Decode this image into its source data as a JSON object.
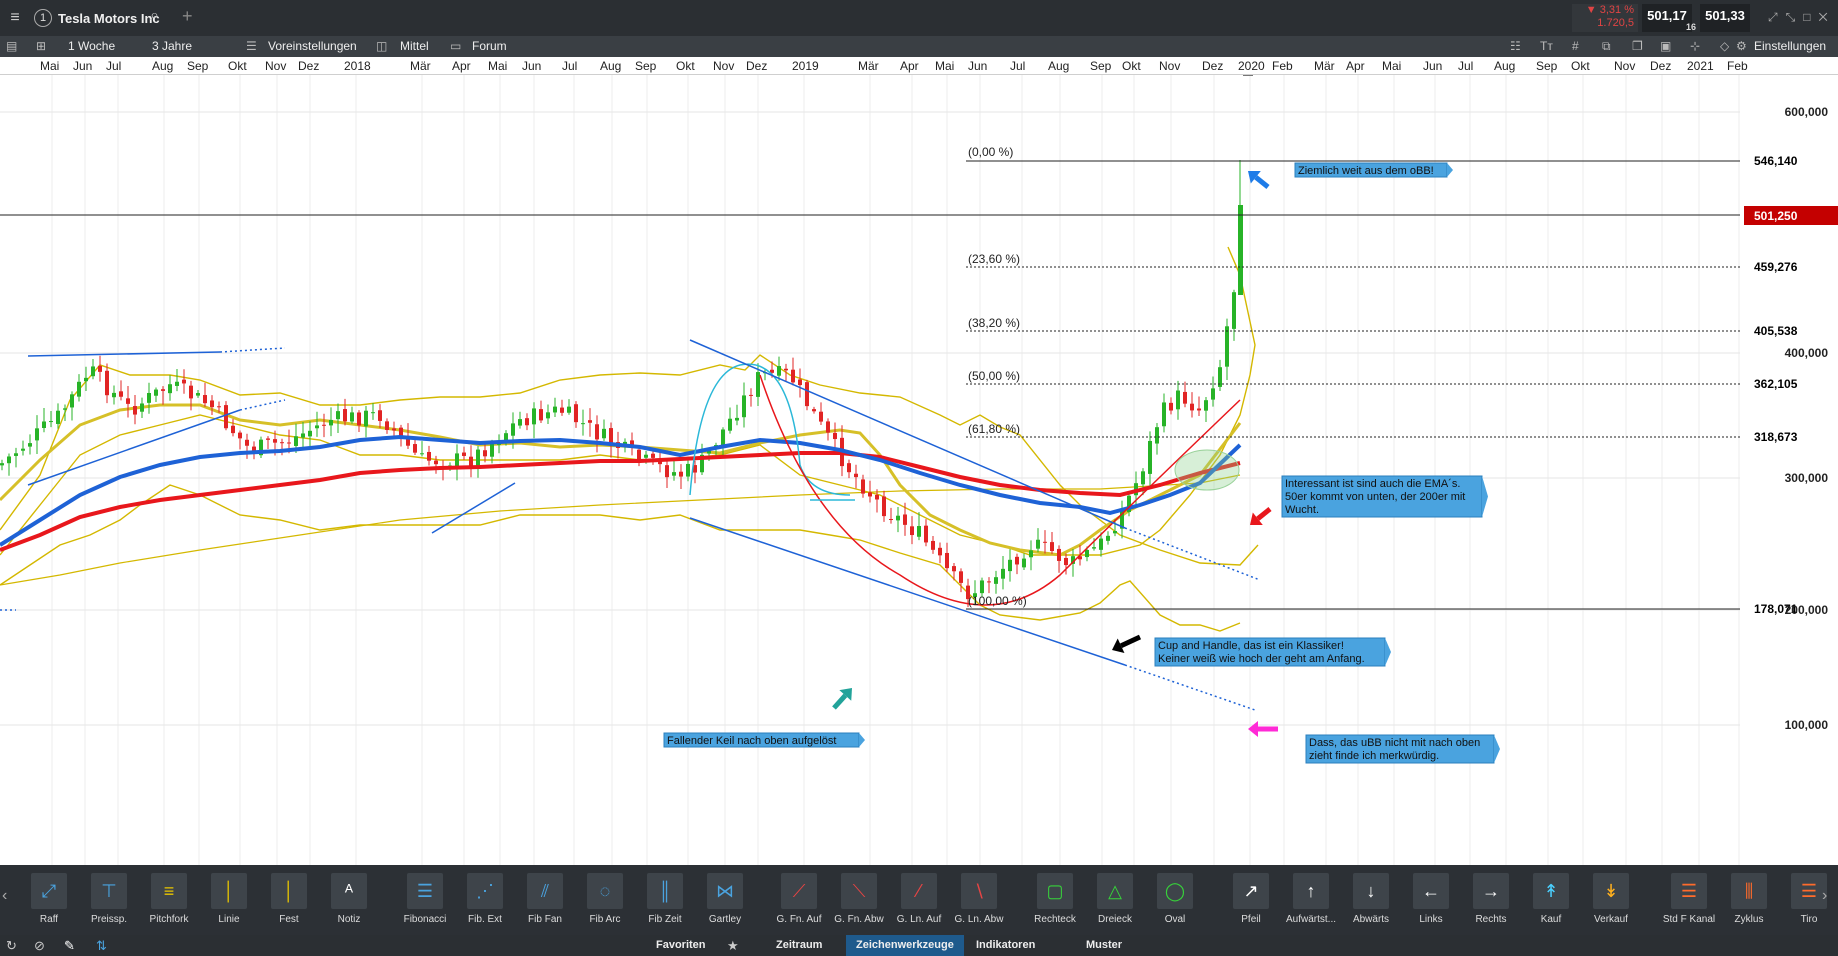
{
  "header": {
    "menu_icon": "hamburger-icon",
    "instrument_index": "1",
    "instrument_name": "Tesla Motors Inc",
    "change_pct": "▼ 3,31 %",
    "change_abs": "1.720,5",
    "bid": "501,17",
    "qty": "16",
    "ask": "501,33"
  },
  "toolbar": {
    "interval": "1 Woche",
    "range": "3 Jahre",
    "presets": "Voreinstellungen",
    "size": "Mittel",
    "forum": "Forum",
    "settings": "Einstellungen"
  },
  "date_axis": [
    "Mai",
    "Jun",
    "Jul",
    "Aug",
    "Sep",
    "Okt",
    "Nov",
    "Dez",
    "2018",
    "Mär",
    "Apr",
    "Mai",
    "Jun",
    "Jul",
    "Aug",
    "Sep",
    "Okt",
    "Nov",
    "Dez",
    "2019",
    "Mär",
    "Apr",
    "Mai",
    "Jun",
    "Jul",
    "Aug",
    "Sep",
    "Okt",
    "Nov",
    "Dez",
    "2020",
    "Feb",
    "Mär",
    "Apr",
    "Mai",
    "Jun",
    "Jul",
    "Aug",
    "Sep",
    "Okt",
    "Nov",
    "Dez",
    "2021",
    "Feb"
  ],
  "price_axis": [
    "600,000",
    "400,000",
    "300,000",
    "200,000",
    "100,000"
  ],
  "price_markers": {
    "high": "546,140",
    "last": "501,250",
    "f236": "459,276",
    "f382": "405,538",
    "f500": "362,105",
    "f618": "318,673",
    "low": "178,071"
  },
  "fib_labels": {
    "l0": "(0,00 %)",
    "l236": "(23,60 %)",
    "l382": "(38,20 %)",
    "l500": "(50,00 %)",
    "l618": "(61,80 %)",
    "l100": "(100,00 %)"
  },
  "annotations": {
    "obb": "Ziemlich weit aus dem oBB!",
    "ema_1": "Interessant ist sind auch die EMA´s.",
    "ema_2": "50er kommt von unten, der 200er mit",
    "ema_3": "Wucht.",
    "cup_1": "Cup and Handle, das ist ein Klassiker!",
    "cup_2": "Keiner weiß wie hoch der geht am Anfang.",
    "ubb_1": "Dass, das uBB nicht mit nach oben",
    "ubb_2": "zieht finde ich merkwürdig.",
    "wedge": "Fallender Keil nach oben aufgelöst"
  },
  "colors": {
    "ema_red": "#e8171c",
    "ema_blue": "#1e62d6",
    "bollinger": "#d4b800",
    "candle_up": "#27b327",
    "candle_down": "#e12424",
    "label_bg": "#4aa3df",
    "last_price_bg": "#c40000"
  },
  "palette": [
    {
      "icon": "raff-icon",
      "label": "Raff"
    },
    {
      "icon": "price-range-icon",
      "label": "Preissp."
    },
    {
      "icon": "pitchfork-icon",
      "label": "Pitchfork"
    },
    {
      "icon": "line-icon",
      "label": "Linie"
    },
    {
      "icon": "fixed-line-icon",
      "label": "Fest"
    },
    {
      "icon": "note-icon",
      "label": "Notiz"
    },
    {
      "icon": "fibonacci-icon",
      "label": "Fibonacci"
    },
    {
      "icon": "fib-extension-icon",
      "label": "Fib. Ext"
    },
    {
      "icon": "fib-fan-icon",
      "label": "Fib Fan"
    },
    {
      "icon": "fib-arc-icon",
      "label": "Fib Arc"
    },
    {
      "icon": "fib-time-icon",
      "label": "Fib Zeit"
    },
    {
      "icon": "gartley-icon",
      "label": "Gartley"
    },
    {
      "icon": "gann-fan-up-icon",
      "label": "G. Fn. Auf"
    },
    {
      "icon": "gann-fan-down-icon",
      "label": "G. Fn. Abw"
    },
    {
      "icon": "gann-line-up-icon",
      "label": "G. Ln. Auf"
    },
    {
      "icon": "gann-line-down-icon",
      "label": "G. Ln. Abw"
    },
    {
      "icon": "rectangle-icon",
      "label": "Rechteck"
    },
    {
      "icon": "triangle-icon",
      "label": "Dreieck"
    },
    {
      "icon": "oval-icon",
      "label": "Oval"
    },
    {
      "icon": "arrow-icon",
      "label": "Pfeil"
    },
    {
      "icon": "up-arrow-icon",
      "label": "Aufwärtst..."
    },
    {
      "icon": "down-arrow-icon",
      "label": "Abwärts"
    },
    {
      "icon": "left-arrow-icon",
      "label": "Links"
    },
    {
      "icon": "right-arrow-icon",
      "label": "Rechts"
    },
    {
      "icon": "buy-arrow-icon",
      "label": "Kauf"
    },
    {
      "icon": "sell-arrow-icon",
      "label": "Verkauf"
    },
    {
      "icon": "std-channel-icon",
      "label": "Std F Kanal"
    },
    {
      "icon": "cycle-icon",
      "label": "Zyklus"
    },
    {
      "icon": "tirone-icon",
      "label": "Tiro"
    }
  ],
  "statusbar": {
    "favorites": "Favoriten",
    "timeframe": "Zeitraum",
    "drawing_tools": "Zeichenwerkzeuge",
    "indicators": "Indikatoren",
    "patterns": "Muster"
  }
}
